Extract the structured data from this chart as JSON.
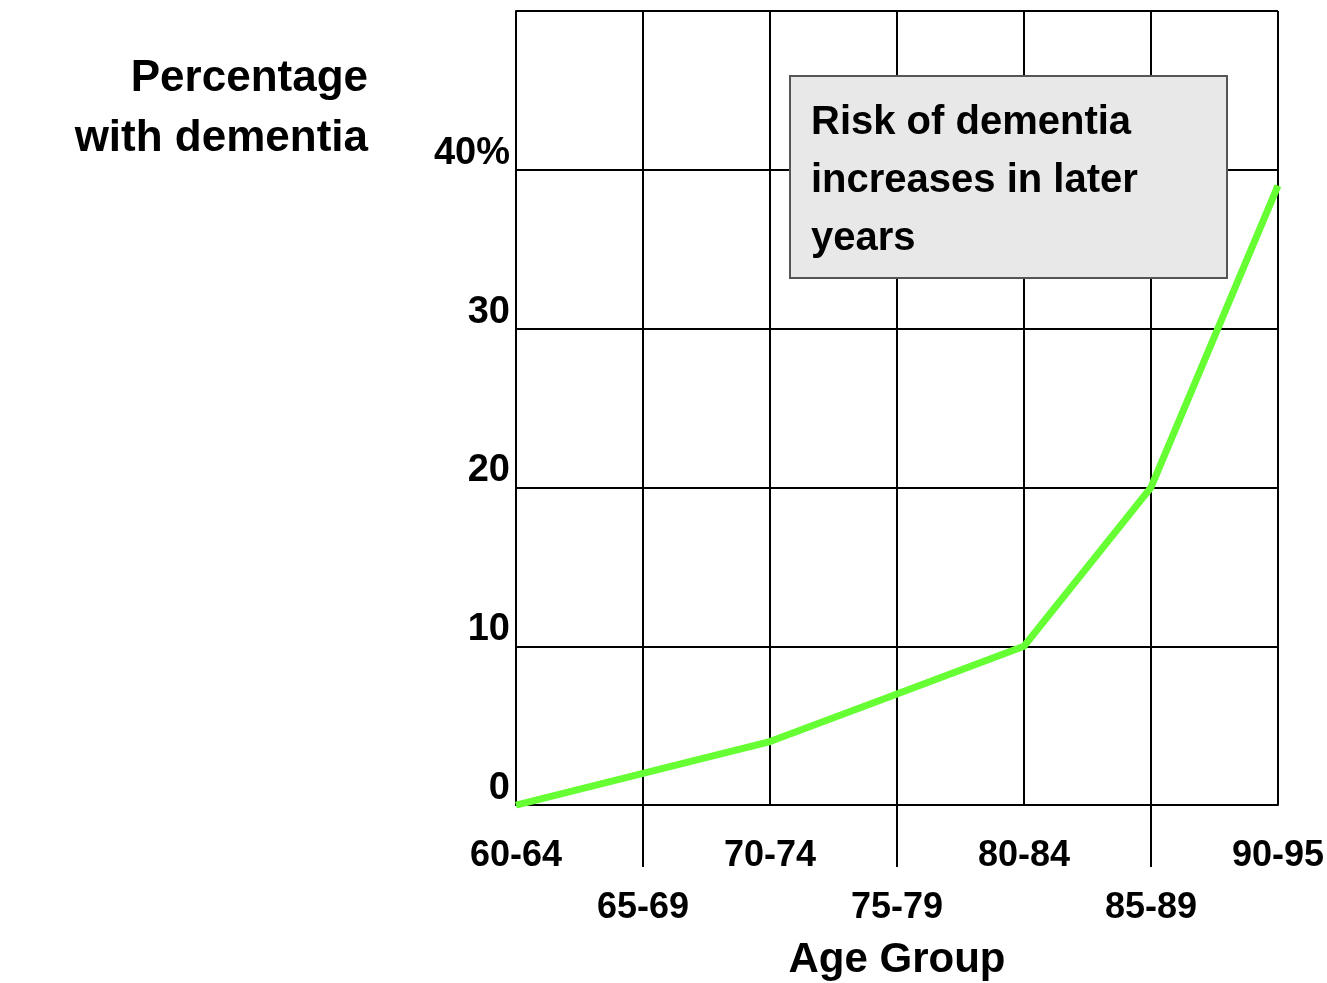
{
  "chart_data": {
    "type": "line",
    "ylabel": "Percentage\nwith dementia",
    "xlabel": "Age Group",
    "categories": [
      "60-64",
      "65-69",
      "70-74",
      "75-79",
      "80-84",
      "85-89",
      "90-95"
    ],
    "series": [
      {
        "color": "#66ff33",
        "values": [
          0,
          2,
          4,
          7,
          10,
          20,
          39
        ]
      }
    ],
    "ylim": [
      0,
      50
    ],
    "yticks": [
      0,
      10,
      20,
      30,
      {
        "value": 40,
        "label": "40%"
      },
      {
        "value": 50,
        "label": null
      }
    ],
    "grid": true,
    "marker": "none",
    "line_style": "solid",
    "annotations": [
      "Risk of dementia increases in later years"
    ]
  }
}
